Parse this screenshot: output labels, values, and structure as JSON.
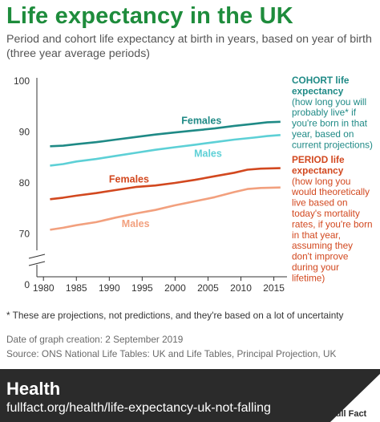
{
  "title": "Life expectancy in the UK",
  "subtitle": "Period and cohort life expectancy at birth in years, based on year of birth (three year average periods)",
  "footnote": "* These are projections, not predictions, and they're based on a lot of uncertainty",
  "date_line": "Date of graph creation: 2 September 2019",
  "source_line": "Source: ONS National Life Tables: UK and Life Tables, Principal Projection, UK",
  "footer": {
    "section": "Health",
    "url": "fullfact.org/health/life-expectancy-uk-not-falling",
    "logo_text": "Full Fact"
  },
  "colors": {
    "cohort_females": "#1f8a86",
    "cohort_males": "#5dd0d6",
    "period_females": "#d2481f",
    "period_males": "#f2a07e",
    "brand": "#1e8c3c"
  },
  "chart_data": {
    "type": "line",
    "x_ticks": [
      1980,
      1985,
      1990,
      1995,
      2000,
      2005,
      2010,
      2015
    ],
    "y_ticks": [
      0,
      70,
      80,
      90,
      100
    ],
    "axis_break": true,
    "grid": false,
    "legend_title_cohort": "COHORT life expectancy",
    "legend_desc_cohort": "(how long you will probably live* if you're born in that year, based on current projections)",
    "legend_title_period": "PERIOD life expectancy",
    "legend_desc_period": "(how long you would theoretically live based on today's mortality rates, if you're born in that year, assuming they don't improve during your lifetime)",
    "series": [
      {
        "name": "Females",
        "group": "cohort",
        "color_key": "cohort_females",
        "points": [
          [
            1981,
            87.2
          ],
          [
            1983,
            87.3
          ],
          [
            1985,
            87.6
          ],
          [
            1988,
            88.0
          ],
          [
            1991,
            88.5
          ],
          [
            1994,
            89.0
          ],
          [
            1997,
            89.5
          ],
          [
            2000,
            89.9
          ],
          [
            2003,
            90.3
          ],
          [
            2006,
            90.7
          ],
          [
            2009,
            91.2
          ],
          [
            2012,
            91.6
          ],
          [
            2014,
            91.9
          ],
          [
            2016,
            92.0
          ]
        ]
      },
      {
        "name": "Males",
        "group": "cohort",
        "color_key": "cohort_males",
        "points": [
          [
            1981,
            83.4
          ],
          [
            1983,
            83.7
          ],
          [
            1985,
            84.2
          ],
          [
            1988,
            84.7
          ],
          [
            1991,
            85.3
          ],
          [
            1994,
            85.9
          ],
          [
            1997,
            86.5
          ],
          [
            2000,
            87.0
          ],
          [
            2003,
            87.5
          ],
          [
            2006,
            88.0
          ],
          [
            2009,
            88.5
          ],
          [
            2012,
            88.9
          ],
          [
            2014,
            89.2
          ],
          [
            2016,
            89.4
          ]
        ]
      },
      {
        "name": "Females",
        "group": "period",
        "color_key": "period_females",
        "points": [
          [
            1981,
            76.8
          ],
          [
            1983,
            77.1
          ],
          [
            1985,
            77.5
          ],
          [
            1988,
            78.0
          ],
          [
            1991,
            78.6
          ],
          [
            1994,
            79.2
          ],
          [
            1997,
            79.5
          ],
          [
            2000,
            80.0
          ],
          [
            2003,
            80.6
          ],
          [
            2006,
            81.3
          ],
          [
            2009,
            82.0
          ],
          [
            2011,
            82.6
          ],
          [
            2013,
            82.8
          ],
          [
            2016,
            82.9
          ]
        ]
      },
      {
        "name": "Males",
        "group": "period",
        "color_key": "period_males",
        "points": [
          [
            1981,
            70.8
          ],
          [
            1983,
            71.2
          ],
          [
            1985,
            71.7
          ],
          [
            1988,
            72.3
          ],
          [
            1991,
            73.2
          ],
          [
            1994,
            74.0
          ],
          [
            1997,
            74.7
          ],
          [
            2000,
            75.6
          ],
          [
            2003,
            76.4
          ],
          [
            2006,
            77.2
          ],
          [
            2009,
            78.2
          ],
          [
            2011,
            78.8
          ],
          [
            2013,
            79.0
          ],
          [
            2016,
            79.1
          ]
        ]
      }
    ]
  }
}
